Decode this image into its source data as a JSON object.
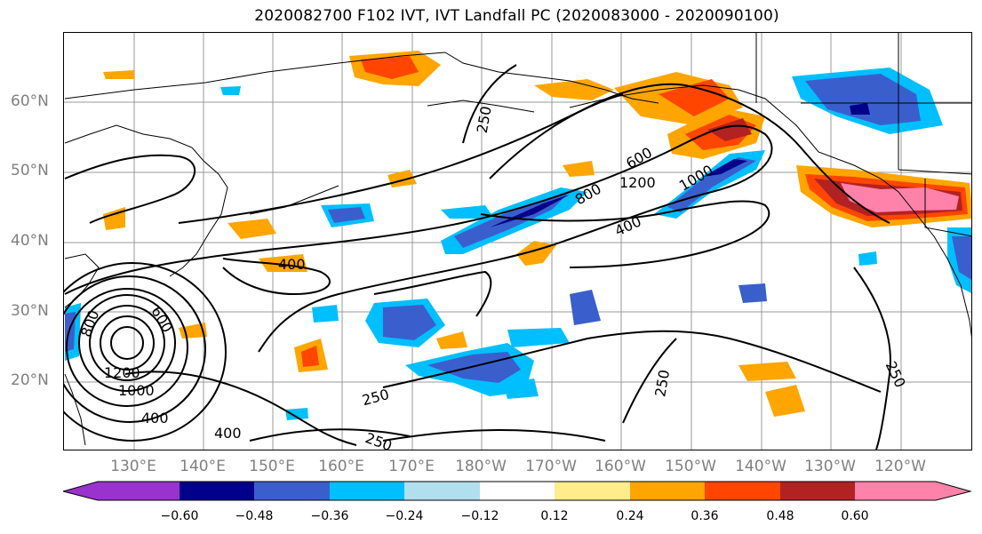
{
  "title": "2020082700 F102 IVT, IVT Landfall PC (2020083000 - 2020090100)",
  "lat_labels": [
    "60°N",
    "50°N",
    "40°N",
    "30°N",
    "20°N"
  ],
  "lon_labels": [
    "130°E",
    "140°E",
    "150°E",
    "160°E",
    "170°E",
    "180°W",
    "170°W",
    "160°W",
    "150°W",
    "140°W",
    "130°W",
    "120°W"
  ],
  "contour_labels": [
    "250",
    "400",
    "600",
    "800",
    "1000",
    "1200",
    "1200",
    "1000",
    "800",
    "600",
    "400",
    "250",
    "250",
    "400",
    "400",
    "250",
    "250"
  ],
  "colorbar": {
    "ticks": [
      "−0.60",
      "−0.48",
      "−0.36",
      "−0.24",
      "−0.12",
      "0.12",
      "0.24",
      "0.36",
      "0.48",
      "0.60"
    ],
    "colors": [
      "#9a32cd",
      "#00008b",
      "#3a5fcd",
      "#00bfff",
      "#b2dfee",
      "#ffffff",
      "#ffec8b",
      "#ffa500",
      "#ff4500",
      "#b22222",
      "#ff82ab"
    ]
  }
}
